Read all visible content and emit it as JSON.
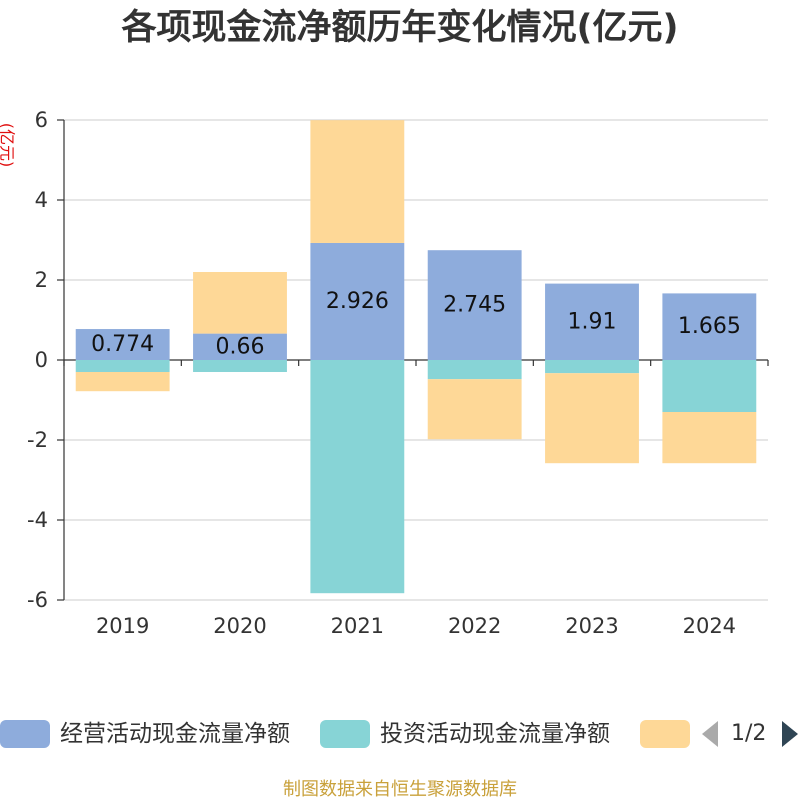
{
  "chart_data": {
    "type": "bar",
    "stacked": true,
    "title": "各项现金流净额历年变化情况(亿元)",
    "xlabel": "",
    "ylabel": "(亿元)",
    "categories": [
      "2019",
      "2020",
      "2021",
      "2022",
      "2023",
      "2024"
    ],
    "ylim": [
      -6,
      6
    ],
    "yticks": [
      -6,
      -4,
      -2,
      0,
      2,
      4,
      6
    ],
    "grid": true,
    "legend_position": "bottom",
    "series": [
      {
        "name": "经营活动现金流量净额",
        "color": "#8eacdc",
        "values": [
          0.774,
          0.66,
          2.926,
          2.745,
          1.91,
          1.665
        ],
        "data_labels": true
      },
      {
        "name": "投资活动现金流量净额",
        "color": "#87d4d6",
        "values": [
          -0.3,
          -0.3,
          -5.83,
          -0.48,
          -0.33,
          -1.3
        ],
        "data_labels": false
      },
      {
        "name": "",
        "color": "#fed897",
        "values": [
          -0.48,
          1.54,
          3.07,
          -1.5,
          -2.25,
          -1.28
        ],
        "data_labels": false
      }
    ]
  },
  "legend": {
    "page_indicator": "1/2",
    "prev_icon": "triangle-left-icon",
    "next_icon": "triangle-right-icon"
  },
  "footer": {
    "source_text": "制图数据来自恒生聚源数据库"
  },
  "colors": {
    "text": "#333333",
    "axis": "#333333",
    "grid": "#cccccc",
    "data_label": "#111111",
    "unit_label": "#e01010",
    "footer": "#c9a13b",
    "nav_active": "#2f4554",
    "nav_inactive": "#aaaaaa"
  }
}
